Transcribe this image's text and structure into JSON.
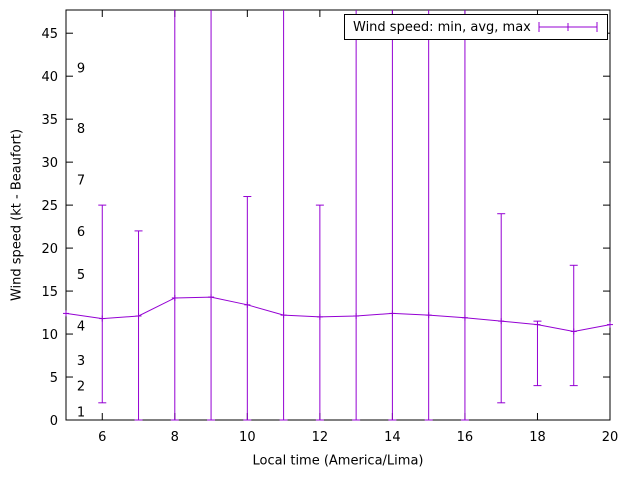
{
  "chart_data": {
    "type": "line",
    "title": "",
    "legend": {
      "label": "Wind speed: min, avg, max",
      "position": "top-right"
    },
    "xlabel": "Local time (America/Lima)",
    "ylabel": "Wind speed (kt - Beaufort)",
    "xlim": [
      5,
      20
    ],
    "ylim": [
      0,
      47.7
    ],
    "xticks": [
      6,
      8,
      10,
      12,
      14,
      16,
      18,
      20
    ],
    "yticks": [
      0,
      5,
      10,
      15,
      20,
      25,
      30,
      35,
      40,
      45
    ],
    "grid": false,
    "background": "#ffffff",
    "axis_color": "#000000",
    "beaufort_scale": [
      {
        "label": "1",
        "kt": 1
      },
      {
        "label": "2",
        "kt": 4
      },
      {
        "label": "3",
        "kt": 7
      },
      {
        "label": "4",
        "kt": 11
      },
      {
        "label": "5",
        "kt": 17
      },
      {
        "label": "6",
        "kt": 22
      },
      {
        "label": "7",
        "kt": 28
      },
      {
        "label": "8",
        "kt": 34
      },
      {
        "label": "9",
        "kt": 41
      }
    ],
    "series": [
      {
        "name": "Wind speed: min, avg, max",
        "color": "#9400d3",
        "points": [
          {
            "hour": 5,
            "avg": 12.4,
            "min": null,
            "max": null
          },
          {
            "hour": 6,
            "avg": 11.8,
            "min": 2,
            "max": 25
          },
          {
            "hour": 7,
            "avg": 12.1,
            "min": 0,
            "max": 22
          },
          {
            "hour": 8,
            "avg": 14.2,
            "min": 0,
            "max": 48
          },
          {
            "hour": 9,
            "avg": 14.3,
            "min": 0,
            "max": 48
          },
          {
            "hour": 10,
            "avg": 13.4,
            "min": 0,
            "max": 26
          },
          {
            "hour": 11,
            "avg": 12.2,
            "min": 0,
            "max": 48
          },
          {
            "hour": 12,
            "avg": 12.0,
            "min": 0,
            "max": 25
          },
          {
            "hour": 13,
            "avg": 12.1,
            "min": 0,
            "max": 48
          },
          {
            "hour": 14,
            "avg": 12.4,
            "min": 0,
            "max": 48
          },
          {
            "hour": 15,
            "avg": 12.2,
            "min": 0,
            "max": 48
          },
          {
            "hour": 16,
            "avg": 11.9,
            "min": 0,
            "max": 48
          },
          {
            "hour": 17,
            "avg": 11.5,
            "min": 2,
            "max": 24
          },
          {
            "hour": 18,
            "avg": 11.1,
            "min": 4,
            "max": 11.5
          },
          {
            "hour": 19,
            "avg": 10.3,
            "min": 4,
            "max": 18
          },
          {
            "hour": 20,
            "avg": 11.1,
            "min": null,
            "max": null
          }
        ]
      }
    ]
  }
}
